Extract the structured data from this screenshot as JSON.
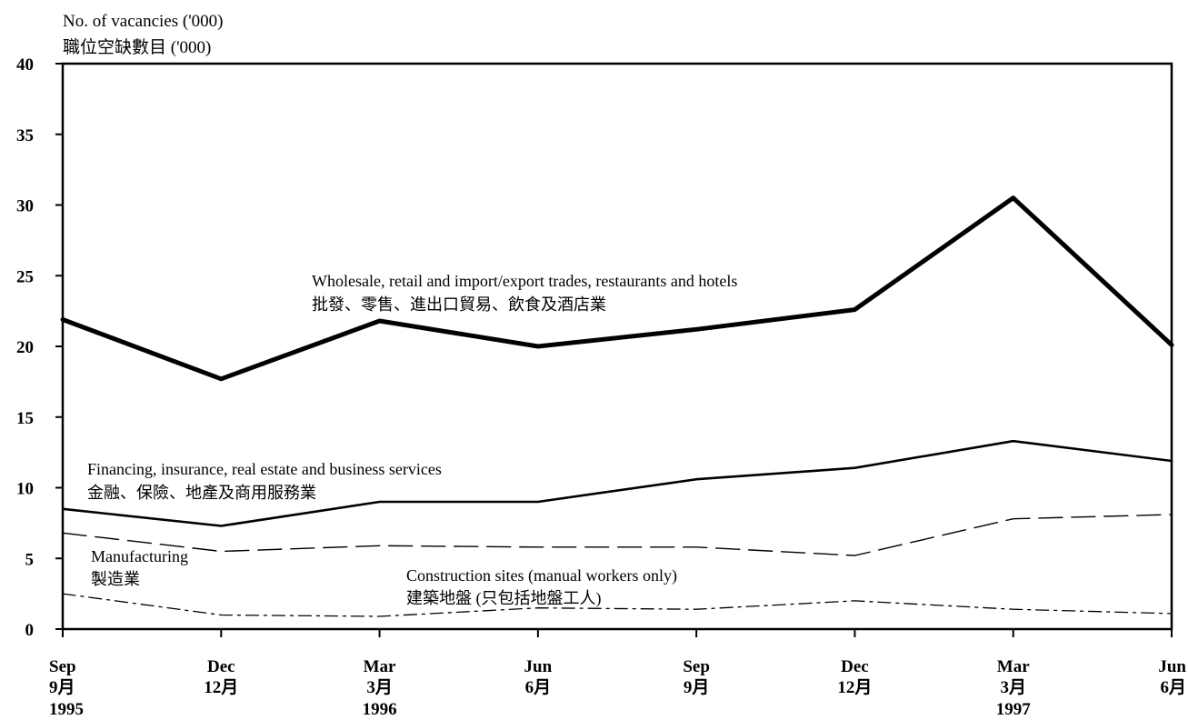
{
  "chart_data": {
    "type": "line",
    "ylabel": "No. of vacancies ('000)",
    "ylabel_zh": "職位空缺數目 ('000)",
    "ylim": [
      0,
      40
    ],
    "yticks": [
      "0",
      "5",
      "10",
      "15",
      "20",
      "25",
      "30",
      "35",
      "40"
    ],
    "grid": false,
    "categories": [
      [
        "Sep",
        "9月",
        "1995"
      ],
      [
        "Dec",
        "12月",
        ""
      ],
      [
        "Mar",
        "3月",
        "1996"
      ],
      [
        "Jun",
        "6月",
        ""
      ],
      [
        "Sep",
        "9月",
        ""
      ],
      [
        "Dec",
        "12月",
        ""
      ],
      [
        "Mar",
        "3月",
        "1997"
      ],
      [
        "Jun",
        "6月",
        ""
      ]
    ],
    "series": [
      {
        "name": "Wholesale, retail and import/export trades, restaurants and hotels",
        "name_zh": "批發、零售、進出口貿易、飲食及酒店業",
        "values": [
          21.9,
          17.7,
          21.8,
          20.0,
          21.2,
          22.6,
          30.5,
          20.1
        ],
        "color": "#000000",
        "style": "thick"
      },
      {
        "name": "Financing, insurance, real estate and business services",
        "name_zh": "金融、保險、地產及商用服務業",
        "values": [
          8.5,
          7.3,
          9.0,
          9.0,
          10.6,
          11.4,
          13.3,
          11.9
        ],
        "color": "#000000",
        "style": "solid"
      },
      {
        "name": "Manufacturing",
        "name_zh": "製造業",
        "values": [
          6.8,
          5.5,
          5.9,
          5.8,
          5.8,
          5.2,
          7.8,
          8.1
        ],
        "color": "#000000",
        "style": "dashed"
      },
      {
        "name": "Construction sites (manual workers only)",
        "name_zh": "建築地盤 (只包括地盤工人)",
        "values": [
          2.5,
          1.0,
          0.9,
          1.5,
          1.4,
          2.0,
          1.4,
          1.1
        ],
        "color": "#000000",
        "style": "dashdot"
      }
    ]
  }
}
